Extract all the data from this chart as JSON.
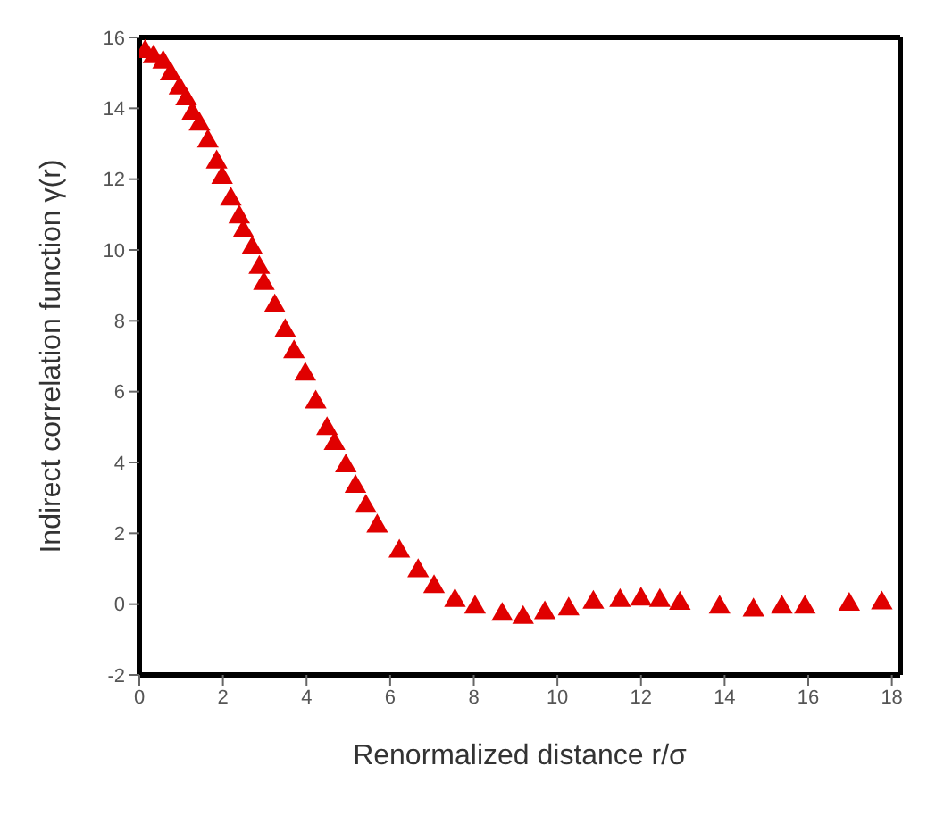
{
  "chart_data": {
    "type": "scatter",
    "xlabel": "Renormalized distance r/σ",
    "ylabel": "Indirect correlation function γ(r)",
    "x": [
      0.14,
      0.34,
      0.57,
      0.75,
      0.96,
      1.12,
      1.27,
      1.44,
      1.64,
      1.85,
      1.98,
      2.19,
      2.39,
      2.49,
      2.7,
      2.87,
      2.98,
      3.24,
      3.49,
      3.7,
      3.97,
      4.22,
      4.49,
      4.67,
      4.94,
      5.17,
      5.42,
      5.69,
      6.22,
      6.67,
      7.05,
      7.55,
      8.03,
      8.68,
      9.18,
      9.7,
      10.27,
      10.86,
      11.5,
      12.0,
      12.45,
      12.93,
      13.88,
      14.69,
      15.37,
      15.92,
      16.98,
      17.76
    ],
    "series": [
      {
        "color": "#e00000",
        "values": [
          15.6,
          15.45,
          15.3,
          14.97,
          14.57,
          14.26,
          13.86,
          13.55,
          13.07,
          12.48,
          12.04,
          11.43,
          10.93,
          10.53,
          10.05,
          9.5,
          9.05,
          8.42,
          7.72,
          7.12,
          6.49,
          5.7,
          4.95,
          4.53,
          3.9,
          3.32,
          2.76,
          2.2,
          1.49,
          0.94,
          0.49,
          0.1,
          -0.09,
          -0.29,
          -0.38,
          -0.25,
          -0.14,
          0.05,
          0.1,
          0.14,
          0.1,
          0.02,
          -0.09,
          -0.17,
          -0.09,
          -0.09,
          -0.01,
          0.03
        ]
      }
    ],
    "marker": "triangle",
    "xlim": [
      0,
      18.2
    ],
    "xticks": [
      0,
      2,
      4,
      6,
      8,
      10,
      12,
      14,
      16,
      18
    ],
    "ylim": [
      -2,
      16
    ],
    "yticks": [
      -2,
      0,
      2,
      4,
      6,
      8,
      10,
      12,
      14,
      16
    ]
  }
}
